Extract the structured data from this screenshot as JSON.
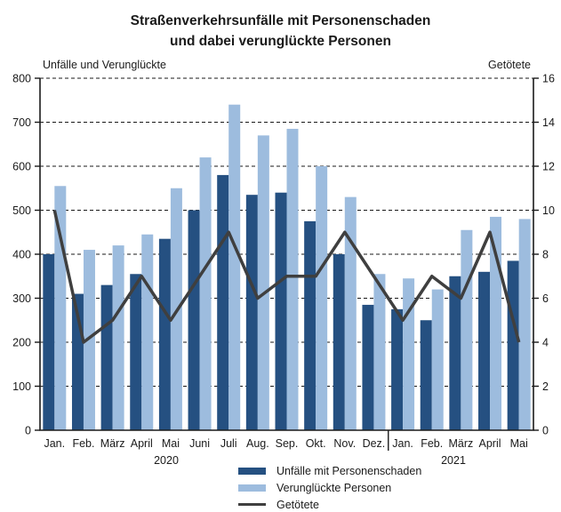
{
  "title": {
    "line1": "Straßenverkehrsunfälle mit Personenschaden",
    "line2": "und dabei verunglückte Personen"
  },
  "axes": {
    "left_title": "Unfälle und Verunglückte",
    "right_title": "Getötete"
  },
  "years": [
    {
      "label": "2020"
    },
    {
      "label": "2021"
    }
  ],
  "legend": [
    {
      "label": "Unfälle mit Personenschaden",
      "type": "bar",
      "color": "#255081"
    },
    {
      "label": "Verunglückte Personen",
      "type": "bar",
      "color": "#9DBCDE"
    },
    {
      "label": "Getötete",
      "type": "line",
      "color": "#3F3F3F"
    }
  ],
  "colors": {
    "bar_dark": "#255081",
    "bar_light": "#9DBCDE",
    "line": "#3F3F3F",
    "axis": "#1A1A1A",
    "background": "#FFFFFF"
  },
  "chart_data": {
    "type": "bar",
    "subtype": "grouped-bars-with-line",
    "title": "Straßenverkehrsunfälle mit Personenschaden und dabei verunglückte Personen",
    "categories": [
      "Jan.",
      "Feb.",
      "März",
      "April",
      "Mai",
      "Juni",
      "Juli",
      "Aug.",
      "Sep.",
      "Okt.",
      "Nov.",
      "Dez.",
      "Jan.",
      "Feb.",
      "März",
      "April",
      "Mai"
    ],
    "x_groups": [
      {
        "year": "2020",
        "count": 12
      },
      {
        "year": "2021",
        "count": 5
      }
    ],
    "series": [
      {
        "name": "Unfälle mit Personenschaden",
        "type": "bar",
        "axis": "left",
        "color": "#255081",
        "values": [
          400,
          310,
          330,
          355,
          435,
          500,
          580,
          535,
          540,
          475,
          400,
          285,
          275,
          250,
          350,
          360,
          385
        ]
      },
      {
        "name": "Verunglückte Personen",
        "type": "bar",
        "axis": "left",
        "color": "#9DBCDE",
        "values": [
          555,
          410,
          420,
          445,
          550,
          620,
          740,
          670,
          685,
          600,
          530,
          355,
          345,
          320,
          455,
          485,
          480
        ]
      },
      {
        "name": "Getötete",
        "type": "line",
        "axis": "right",
        "color": "#3F3F3F",
        "values": [
          10,
          4,
          5,
          7,
          5,
          7,
          9,
          6,
          7,
          7,
          9,
          7,
          5,
          7,
          6,
          9,
          4
        ]
      }
    ],
    "left_axis": {
      "title": "Unfälle und Verunglückte",
      "min": 0,
      "max": 800,
      "step": 100
    },
    "right_axis": {
      "title": "Getötete",
      "min": 0,
      "max": 16,
      "step": 2
    },
    "grid": "horizontal dashed",
    "legend_position": "bottom"
  }
}
